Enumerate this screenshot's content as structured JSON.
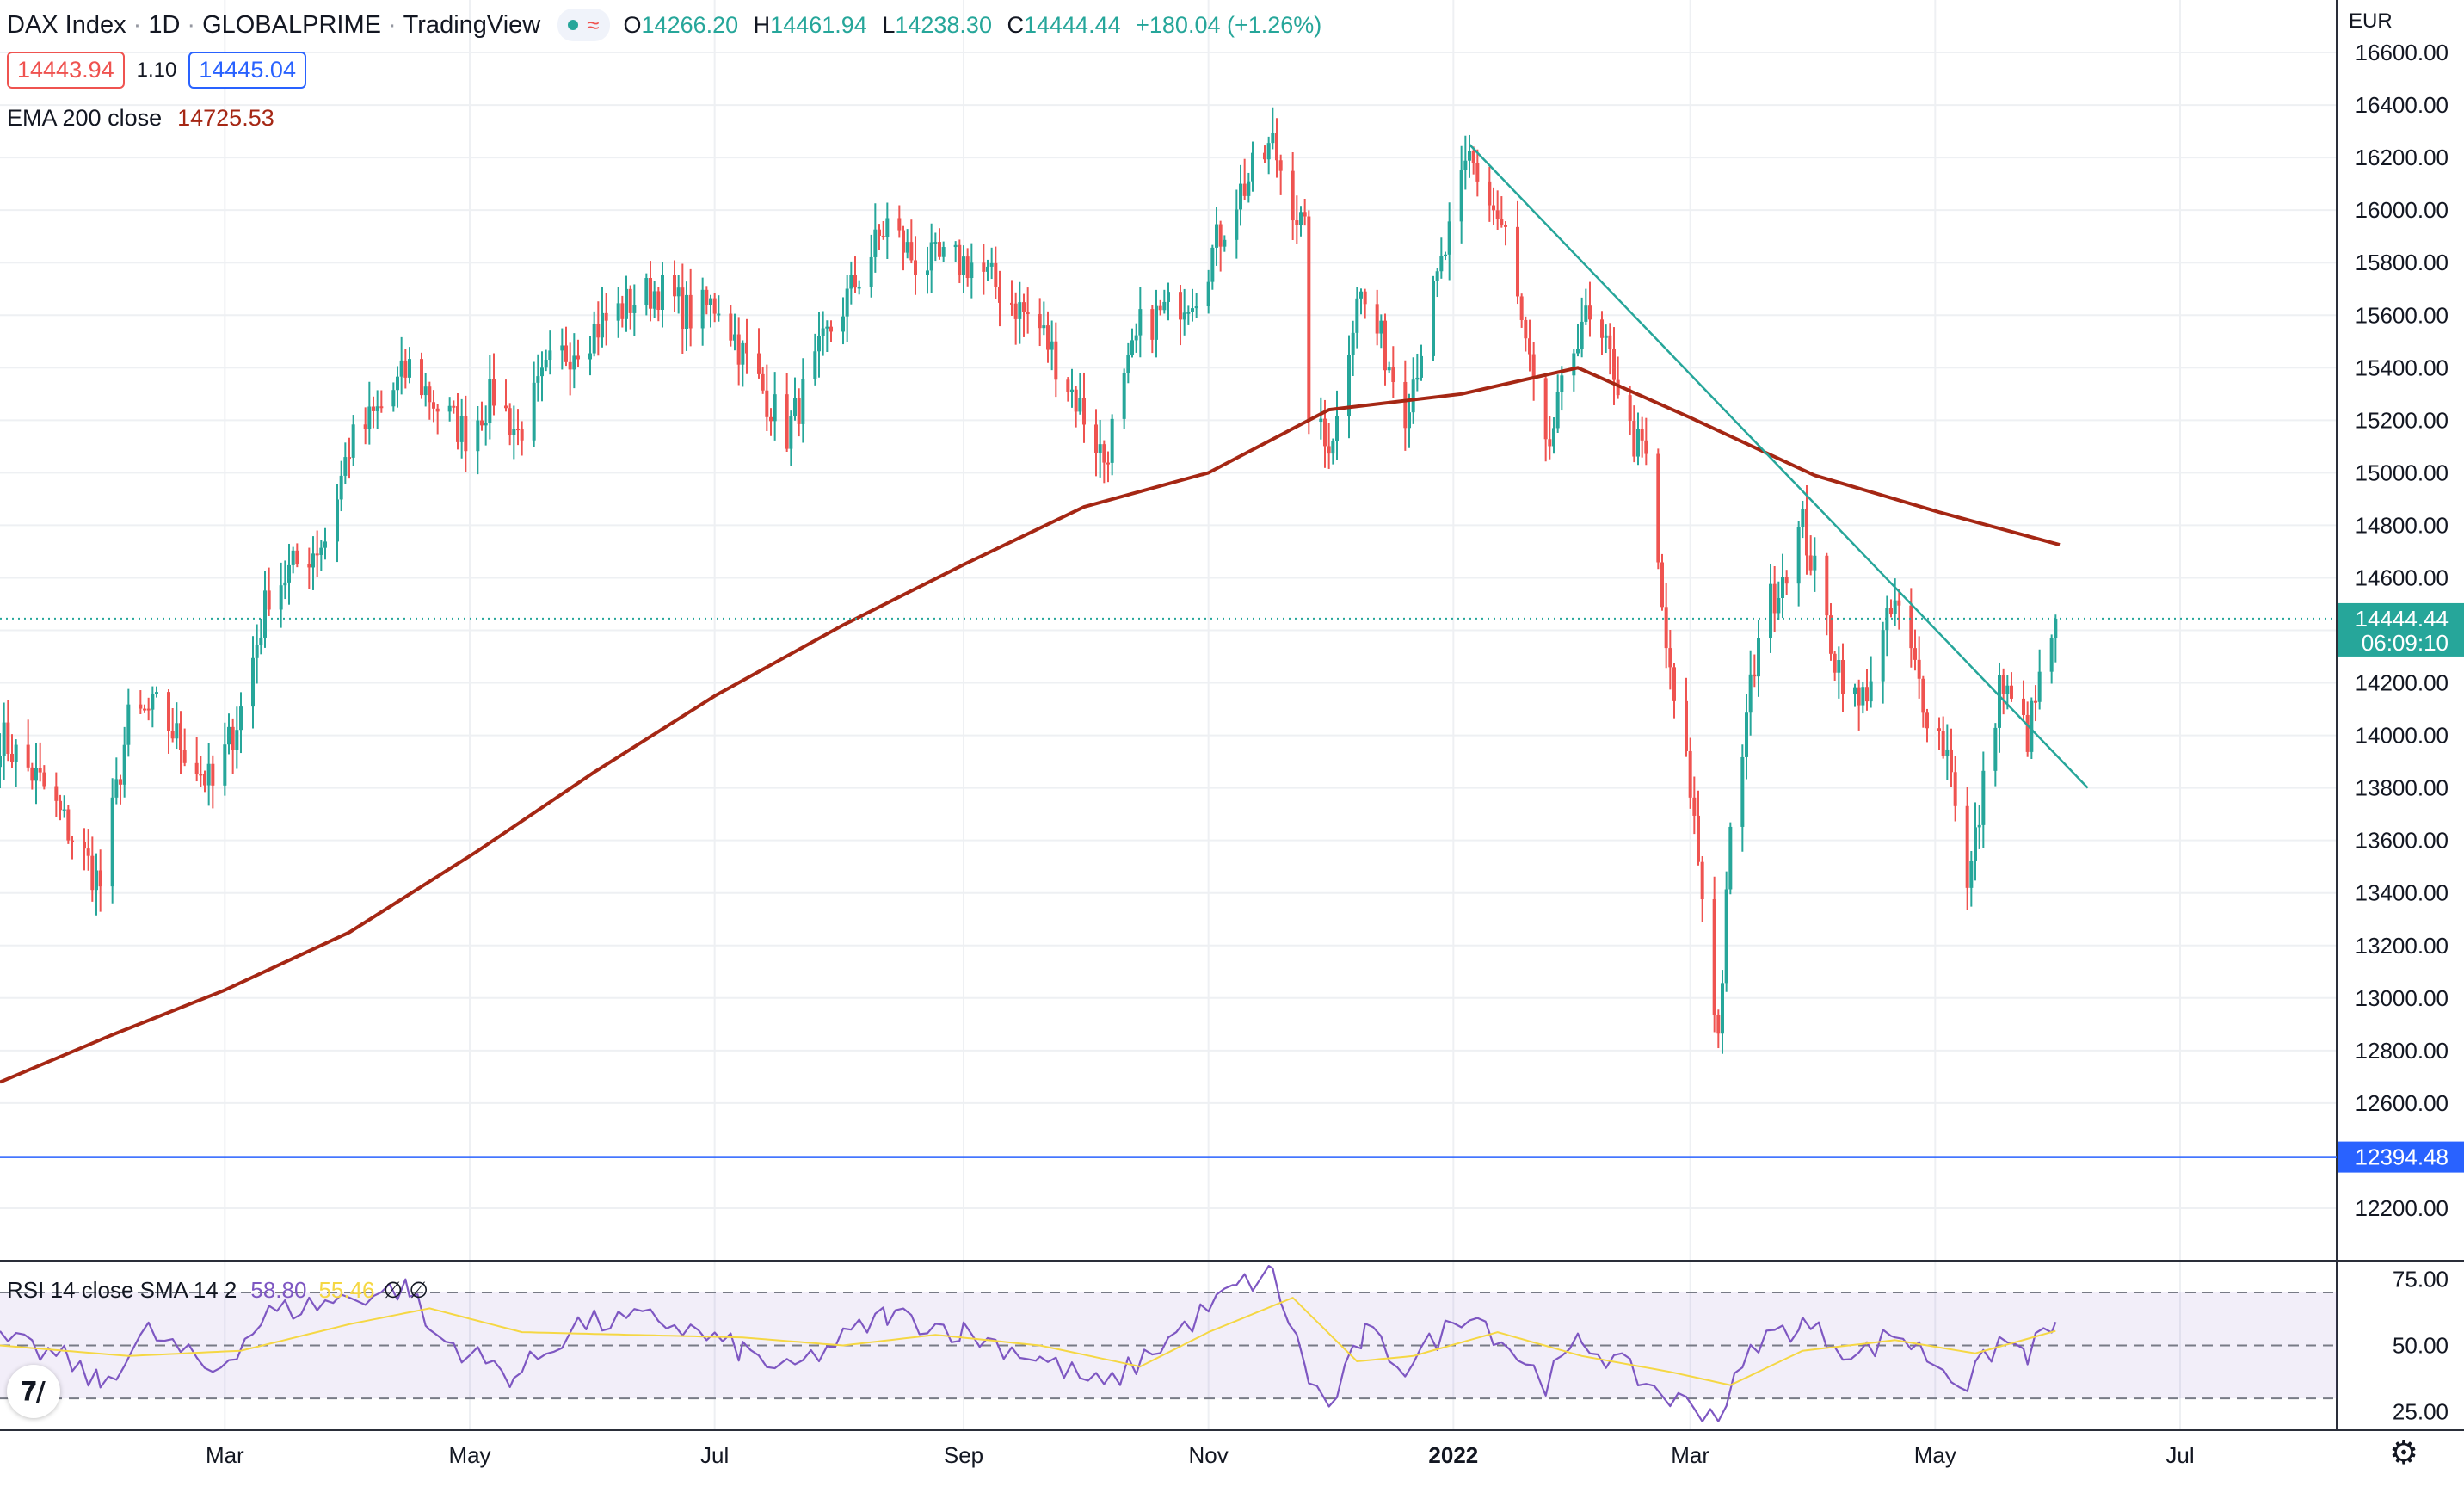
{
  "header": {
    "symbol": "DAX Index",
    "interval": "1D",
    "exchange": "GLOBALPRIME",
    "source": "TradingView",
    "approx_symbol": "≈",
    "open_label": "O",
    "open": "14266.20",
    "high_label": "H",
    "high": "14461.94",
    "low_label": "L",
    "low": "14238.30",
    "close_label": "C",
    "close": "14444.44",
    "change": "+180.04 (+1.26%)"
  },
  "quote": {
    "bid": "14443.94",
    "spread": "1.10",
    "ask": "14445.04"
  },
  "ema_legend": {
    "label": "EMA 200 close",
    "value": "14725.53"
  },
  "rsi_legend": {
    "label": "RSI 14 close SMA 14 2",
    "rsi": "58.80",
    "sma": "55.46",
    "extra": "∅ ∅"
  },
  "chart_data": [
    {
      "type": "candlestick",
      "currency": "EUR",
      "ylim": [
        12000,
        16800
      ],
      "y_ticks": [
        "16600.00",
        "16400.00",
        "16200.00",
        "16000.00",
        "15800.00",
        "15600.00",
        "15400.00",
        "15200.00",
        "15000.00",
        "14800.00",
        "14600.00",
        "14400.00",
        "14200.00",
        "14000.00",
        "13800.00",
        "13600.00",
        "13400.00",
        "13200.00",
        "13000.00",
        "12800.00",
        "12600.00",
        "12200.00"
      ],
      "x_ticks": [
        {
          "label": "Mar",
          "date": "2021-03-01"
        },
        {
          "label": "May",
          "date": "2021-05-01"
        },
        {
          "label": "Jul",
          "date": "2021-07-01"
        },
        {
          "label": "Sep",
          "date": "2021-09-01"
        },
        {
          "label": "Nov",
          "date": "2021-11-01"
        },
        {
          "label": "2022",
          "date": "2022-01-01",
          "bold": true
        },
        {
          "label": "Mar",
          "date": "2022-03-01"
        },
        {
          "label": "May",
          "date": "2022-05-01"
        },
        {
          "label": "Jul",
          "date": "2022-07-01"
        }
      ],
      "x_range": [
        "2021-01-04",
        "2022-08-09"
      ],
      "grid": true,
      "up_color": "#26a69a",
      "down_color": "#ef5350",
      "anchors": [
        {
          "date": "2021-01-04",
          "close": 14000
        },
        {
          "date": "2021-01-15",
          "close": 13800
        },
        {
          "date": "2021-01-29",
          "close": 13430
        },
        {
          "date": "2021-02-05",
          "close": 14050
        },
        {
          "date": "2021-02-12",
          "close": 14100
        },
        {
          "date": "2021-02-19",
          "close": 13950
        },
        {
          "date": "2021-02-26",
          "close": 13800
        },
        {
          "date": "2021-03-05",
          "close": 14100
        },
        {
          "date": "2021-03-12",
          "close": 14550
        },
        {
          "date": "2021-03-19",
          "close": 14650
        },
        {
          "date": "2021-03-26",
          "close": 14750
        },
        {
          "date": "2021-04-01",
          "close": 15100
        },
        {
          "date": "2021-04-09",
          "close": 15250
        },
        {
          "date": "2021-04-16",
          "close": 15400
        },
        {
          "date": "2021-04-23",
          "close": 15250
        },
        {
          "date": "2021-04-30",
          "close": 15150
        },
        {
          "date": "2021-05-07",
          "close": 15300
        },
        {
          "date": "2021-05-13",
          "close": 15150
        },
        {
          "date": "2021-05-21",
          "close": 15400
        },
        {
          "date": "2021-05-28",
          "close": 15500
        },
        {
          "date": "2021-06-10",
          "close": 15650
        },
        {
          "date": "2021-06-17",
          "close": 15700
        },
        {
          "date": "2021-06-25",
          "close": 15600
        },
        {
          "date": "2021-07-02",
          "close": 15650
        },
        {
          "date": "2021-07-08",
          "close": 15450
        },
        {
          "date": "2021-07-19",
          "close": 15150
        },
        {
          "date": "2021-07-30",
          "close": 15550
        },
        {
          "date": "2021-08-13",
          "close": 15950
        },
        {
          "date": "2021-08-20",
          "close": 15800
        },
        {
          "date": "2021-09-03",
          "close": 15800
        },
        {
          "date": "2021-09-20",
          "close": 15550
        },
        {
          "date": "2021-09-30",
          "close": 15250
        },
        {
          "date": "2021-10-06",
          "close": 15050
        },
        {
          "date": "2021-10-15",
          "close": 15550
        },
        {
          "date": "2021-10-29",
          "close": 15700
        },
        {
          "date": "2021-11-08",
          "close": 16050
        },
        {
          "date": "2021-11-17",
          "close": 16250
        },
        {
          "date": "2021-11-25",
          "close": 15900
        },
        {
          "date": "2021-11-26",
          "close": 15250
        },
        {
          "date": "2021-11-30",
          "close": 15100
        },
        {
          "date": "2021-12-03",
          "close": 15200
        },
        {
          "date": "2021-12-08",
          "close": 15700
        },
        {
          "date": "2021-12-14",
          "close": 15500
        },
        {
          "date": "2021-12-20",
          "close": 15250
        },
        {
          "date": "2021-12-31",
          "close": 15900
        },
        {
          "date": "2022-01-05",
          "close": 16200
        },
        {
          "date": "2022-01-14",
          "close": 15900
        },
        {
          "date": "2022-01-24",
          "close": 15050
        },
        {
          "date": "2022-02-02",
          "close": 15600
        },
        {
          "date": "2022-02-10",
          "close": 15400
        },
        {
          "date": "2022-02-14",
          "close": 15150
        },
        {
          "date": "2022-02-18",
          "close": 15050
        },
        {
          "date": "2022-02-24",
          "close": 14200
        },
        {
          "date": "2022-03-01",
          "close": 13800
        },
        {
          "date": "2022-03-08",
          "close": 12850
        },
        {
          "date": "2022-03-11",
          "close": 13600
        },
        {
          "date": "2022-03-18",
          "close": 14400
        },
        {
          "date": "2022-03-29",
          "close": 14800
        },
        {
          "date": "2022-04-06",
          "close": 14300
        },
        {
          "date": "2022-04-12",
          "close": 14100
        },
        {
          "date": "2022-04-21",
          "close": 14500
        },
        {
          "date": "2022-04-29",
          "close": 14100
        },
        {
          "date": "2022-05-05",
          "close": 13900
        },
        {
          "date": "2022-05-09",
          "close": 13400
        },
        {
          "date": "2022-05-17",
          "close": 14200
        },
        {
          "date": "2022-05-24",
          "close": 14000
        },
        {
          "date": "2022-05-31",
          "close": 14444.44
        }
      ],
      "ema_200": [
        {
          "date": "2021-01-04",
          "value": 12680
        },
        {
          "date": "2021-02-01",
          "value": 12860
        },
        {
          "date": "2021-03-01",
          "value": 13030
        },
        {
          "date": "2021-04-01",
          "value": 13250
        },
        {
          "date": "2021-05-03",
          "value": 13560
        },
        {
          "date": "2021-06-01",
          "value": 13860
        },
        {
          "date": "2021-07-01",
          "value": 14150
        },
        {
          "date": "2021-08-02",
          "value": 14420
        },
        {
          "date": "2021-09-01",
          "value": 14650
        },
        {
          "date": "2021-10-01",
          "value": 14870
        },
        {
          "date": "2021-11-01",
          "value": 15000
        },
        {
          "date": "2021-12-01",
          "value": 15240
        },
        {
          "date": "2022-01-03",
          "value": 15300
        },
        {
          "date": "2022-02-01",
          "value": 15400
        },
        {
          "date": "2022-03-01",
          "value": 15210
        },
        {
          "date": "2022-04-01",
          "value": 14990
        },
        {
          "date": "2022-05-02",
          "value": 14850
        },
        {
          "date": "2022-06-01",
          "value": 14725.53
        }
      ],
      "trendline": [
        {
          "date": "2022-01-05",
          "value": 16250
        },
        {
          "date": "2022-06-08",
          "value": 13800
        }
      ],
      "horizontal_line": {
        "value": 12394.48,
        "label": "12394.48",
        "color": "#2962ff"
      },
      "last_price": {
        "value": 14444.44,
        "label": "14444.44",
        "countdown": "06:09:10",
        "color": "#26a69a"
      }
    },
    {
      "type": "line",
      "title": "RSI 14 close SMA 14 2",
      "ylim": [
        18,
        82
      ],
      "y_ticks": [
        "75.00",
        "50.00",
        "25.00"
      ],
      "bands": [
        70,
        50,
        30
      ],
      "series": [
        {
          "name": "RSI",
          "color": "#7e57c2",
          "values": [
            {
              "date": "2021-01-04",
              "value": 52
            },
            {
              "date": "2021-01-20",
              "value": 45
            },
            {
              "date": "2021-01-29",
              "value": 35
            },
            {
              "date": "2021-02-10",
              "value": 55
            },
            {
              "date": "2021-02-26",
              "value": 40
            },
            {
              "date": "2021-03-12",
              "value": 62
            },
            {
              "date": "2021-04-01",
              "value": 68
            },
            {
              "date": "2021-04-16",
              "value": 72
            },
            {
              "date": "2021-04-21",
              "value": 55
            },
            {
              "date": "2021-05-12",
              "value": 38
            },
            {
              "date": "2021-05-28",
              "value": 58
            },
            {
              "date": "2021-06-17",
              "value": 60
            },
            {
              "date": "2021-07-08",
              "value": 48
            },
            {
              "date": "2021-07-19",
              "value": 40
            },
            {
              "date": "2021-08-13",
              "value": 62
            },
            {
              "date": "2021-09-01",
              "value": 55
            },
            {
              "date": "2021-09-20",
              "value": 45
            },
            {
              "date": "2021-10-06",
              "value": 34
            },
            {
              "date": "2021-10-20",
              "value": 50
            },
            {
              "date": "2021-11-08",
              "value": 72
            },
            {
              "date": "2021-11-17",
              "value": 77
            },
            {
              "date": "2021-11-26",
              "value": 38
            },
            {
              "date": "2021-12-01",
              "value": 26
            },
            {
              "date": "2021-12-10",
              "value": 55
            },
            {
              "date": "2021-12-20",
              "value": 42
            },
            {
              "date": "2022-01-05",
              "value": 64
            },
            {
              "date": "2022-01-24",
              "value": 36
            },
            {
              "date": "2022-02-02",
              "value": 52
            },
            {
              "date": "2022-02-14",
              "value": 40
            },
            {
              "date": "2022-02-24",
              "value": 30
            },
            {
              "date": "2022-03-08",
              "value": 24
            },
            {
              "date": "2022-03-18",
              "value": 52
            },
            {
              "date": "2022-03-29",
              "value": 58
            },
            {
              "date": "2022-04-12",
              "value": 46
            },
            {
              "date": "2022-04-21",
              "value": 55
            },
            {
              "date": "2022-05-09",
              "value": 35
            },
            {
              "date": "2022-05-17",
              "value": 52
            },
            {
              "date": "2022-05-24",
              "value": 47
            },
            {
              "date": "2022-05-31",
              "value": 58.8
            }
          ]
        },
        {
          "name": "SMA",
          "color": "#f5d744",
          "values": [
            {
              "date": "2021-01-04",
              "value": 50
            },
            {
              "date": "2021-02-05",
              "value": 46
            },
            {
              "date": "2021-03-05",
              "value": 48
            },
            {
              "date": "2021-04-01",
              "value": 58
            },
            {
              "date": "2021-04-21",
              "value": 64
            },
            {
              "date": "2021-05-14",
              "value": 55
            },
            {
              "date": "2021-06-10",
              "value": 54
            },
            {
              "date": "2021-07-08",
              "value": 53
            },
            {
              "date": "2021-08-02",
              "value": 50
            },
            {
              "date": "2021-08-25",
              "value": 54
            },
            {
              "date": "2021-09-20",
              "value": 50
            },
            {
              "date": "2021-10-15",
              "value": 42
            },
            {
              "date": "2021-11-01",
              "value": 55
            },
            {
              "date": "2021-11-22",
              "value": 68
            },
            {
              "date": "2021-12-08",
              "value": 44
            },
            {
              "date": "2021-12-22",
              "value": 46
            },
            {
              "date": "2022-01-12",
              "value": 55
            },
            {
              "date": "2022-02-02",
              "value": 46
            },
            {
              "date": "2022-02-24",
              "value": 40
            },
            {
              "date": "2022-03-11",
              "value": 35
            },
            {
              "date": "2022-03-29",
              "value": 48
            },
            {
              "date": "2022-04-21",
              "value": 52
            },
            {
              "date": "2022-05-11",
              "value": 47
            },
            {
              "date": "2022-05-31",
              "value": 55.46
            }
          ]
        }
      ]
    }
  ]
}
